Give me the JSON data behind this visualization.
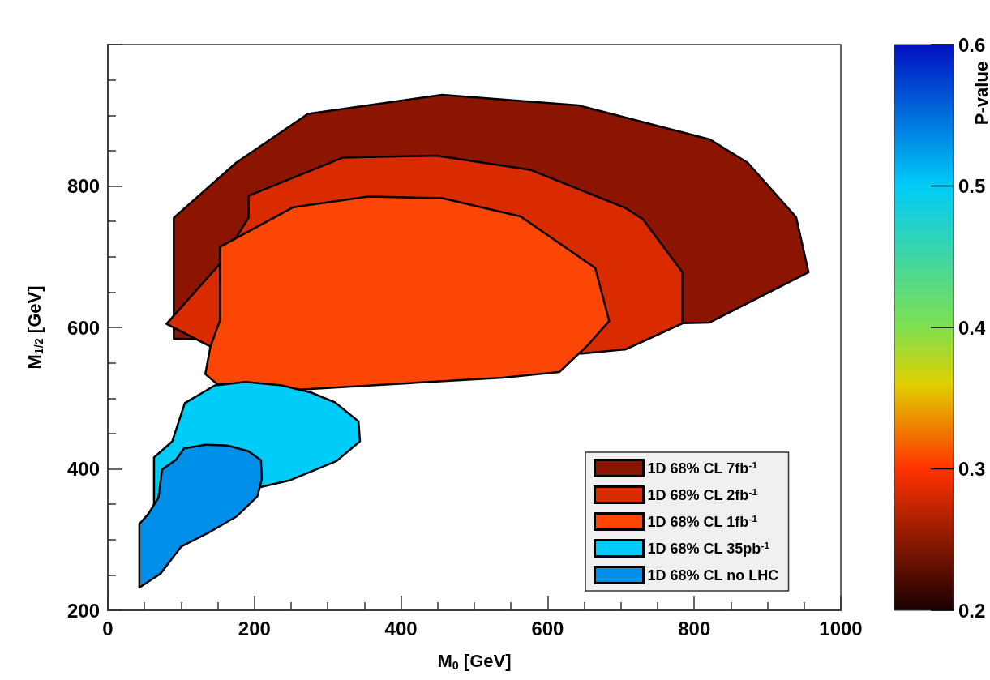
{
  "chart_data": {
    "type": "area",
    "xlabel": "M$_{0}$ [GeV]",
    "ylabel": "M$_{1/2}$ [GeV]",
    "clabel": "P-value",
    "xlim": [
      0,
      1000
    ],
    "xticks": [
      0,
      200,
      400,
      600,
      800,
      1000
    ],
    "ylim": [
      200,
      1000
    ],
    "yticks": [
      200,
      400,
      600,
      800,
      {
        "value": 1000,
        "label": null
      }
    ],
    "clim": [
      0.2,
      0.6
    ],
    "cticks": [
      0.2,
      0.3,
      0.4,
      0.5,
      0.6
    ],
    "legend": "bottom right",
    "grid": false,
    "series": [
      {
        "name": "1D 68% CL 7fb$^{-1}$",
        "color": "#8b1500",
        "x": [
          90,
          175,
          273,
          456,
          642,
          821,
          873,
          939,
          956,
          821,
          784,
          706,
          100,
          90
        ],
        "values": [
          755,
          833,
          902,
          929,
          914,
          866,
          833,
          756,
          678,
          607,
          606,
          569,
          584,
          584
        ]
      },
      {
        "name": "1D 68% CL 2fb$^{-1}$",
        "color": "#d92a00",
        "x": [
          192,
          320,
          448,
          576,
          706,
          730,
          784,
          784,
          706,
          647,
          140,
          80,
          152,
          192
        ],
        "values": [
          786,
          840,
          843,
          823,
          769,
          753,
          678,
          606,
          569,
          563,
          573,
          605,
          689,
          755
        ]
      },
      {
        "name": "1D 68% CL 1fb$^{-1}$",
        "color": "#fb4605",
        "x": [
          153,
          253,
          355,
          455,
          563,
          665,
          684,
          654,
          616,
          539,
          262,
          148,
          133,
          140,
          153
        ],
        "values": [
          714,
          770,
          785,
          783,
          757,
          684,
          609,
          574,
          537,
          529,
          512,
          521,
          534,
          573,
          610
        ]
      },
      {
        "name": "1D 68% CL 35pb$^{-1}$",
        "color": "#00ccfa",
        "x": [
          146,
          188,
          237,
          277,
          310,
          342,
          344,
          312,
          249,
          207,
          63,
          63,
          88,
          105
        ],
        "values": [
          518,
          523,
          518,
          508,
          494,
          467,
          439,
          411,
          384,
          374,
          345,
          416,
          439,
          493
        ]
      },
      {
        "name": "1D 68% CL no LHC",
        "color": "#008fe8",
        "x": [
          104,
          133,
          163,
          192,
          209,
          210,
          204,
          176,
          138,
          100,
          72,
          43,
          43,
          55,
          69,
          74,
          93
        ],
        "values": [
          429,
          434,
          433,
          425,
          412,
          385,
          361,
          333,
          310,
          290,
          252,
          232,
          322,
          336,
          359,
          399,
          413
        ]
      }
    ]
  }
}
